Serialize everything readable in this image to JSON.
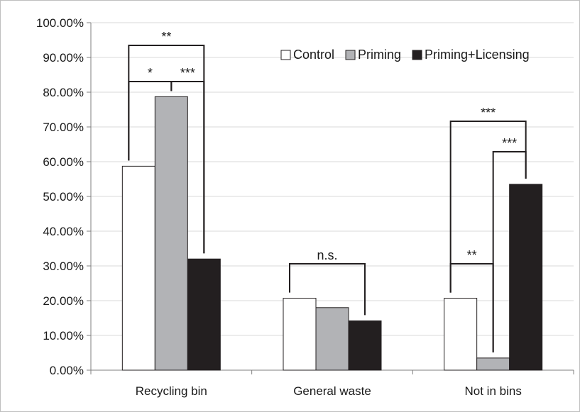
{
  "chart_data": {
    "type": "bar",
    "title": "",
    "xlabel": "",
    "ylabel": "",
    "ylim": [
      0,
      1
    ],
    "yticks": [
      "0.00%",
      "10.00%",
      "20.00%",
      "30.00%",
      "40.00%",
      "50.00%",
      "60.00%",
      "70.00%",
      "80.00%",
      "90.00%",
      "100.00%"
    ],
    "categories": [
      "Recycling bin",
      "General waste",
      "Not in bins"
    ],
    "series": [
      {
        "name": "Control",
        "values": [
          0.587,
          0.207,
          0.207
        ],
        "color": "#ffffff"
      },
      {
        "name": "Priming",
        "values": [
          0.787,
          0.18,
          0.035
        ],
        "color": "#b2b3b6"
      },
      {
        "name": "Priming+Licensing",
        "values": [
          0.32,
          0.142,
          0.535
        ],
        "color": "#231f20"
      }
    ],
    "grid": true,
    "legend_position": "top-right",
    "significance": [
      {
        "category": 0,
        "from_series": 0,
        "to_series": 2,
        "label": "**"
      },
      {
        "category": 0,
        "from_series": 1,
        "to_series": 2,
        "label": "***"
      },
      {
        "category": 0,
        "from_series": 0,
        "to_series": 1,
        "label": "*"
      },
      {
        "category": 1,
        "from_series": 0,
        "to_series": 2,
        "label": "n.s."
      },
      {
        "category": 2,
        "from_series": 0,
        "to_series": 2,
        "label": "***"
      },
      {
        "category": 2,
        "from_series": 1,
        "to_series": 2,
        "label": "***"
      },
      {
        "category": 2,
        "from_series": 0,
        "to_series": 1,
        "label": "**"
      }
    ]
  }
}
